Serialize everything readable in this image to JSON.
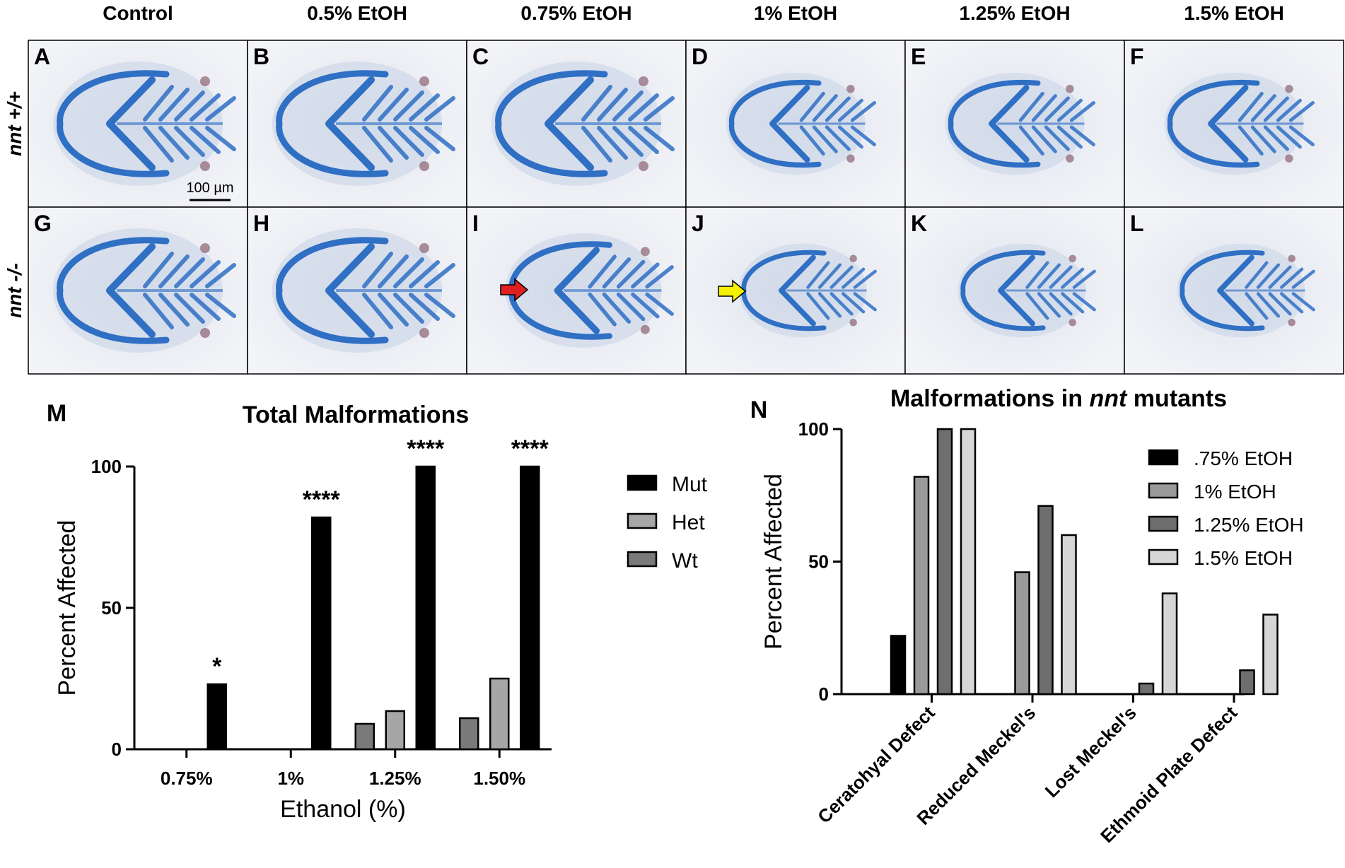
{
  "column_headers": [
    "Control",
    "0.5% EtOH",
    "0.75% EtOH",
    "1% EtOH",
    "1.25% EtOH",
    "1.5% EtOH"
  ],
  "row_labels": [
    {
      "gene": "nnt",
      "genotype": " +/+"
    },
    {
      "gene": "nnt",
      "genotype": " -/-"
    }
  ],
  "panel_letters": [
    [
      "A",
      "B",
      "C",
      "D",
      "E",
      "F"
    ],
    [
      "G",
      "H",
      "I",
      "J",
      "K",
      "L"
    ]
  ],
  "scale_bar_label": "100 µm",
  "arrow_colors": {
    "red": "#e02020",
    "yellow": "#f5f000"
  },
  "colors": {
    "mut": "#000000",
    "het": "#a6a6a6",
    "wt": "#7a7a7a",
    "c075": "#000000",
    "c1": "#9a9a9a",
    "c125": "#6e6e6e",
    "c15": "#d6d6d6",
    "stain": "#2f6fc4"
  },
  "chart_data": [
    {
      "panel_label": "M",
      "type": "bar",
      "title": "Total Malformations",
      "xlabel": "Ethanol (%)",
      "ylabel": "Percent Affected",
      "ylim": [
        0,
        100
      ],
      "yticks": [
        0,
        50,
        100
      ],
      "categories": [
        "0.75%",
        "1%",
        "1.25%",
        "1.50%"
      ],
      "series": [
        {
          "name": "Wt",
          "values": [
            0,
            0,
            9,
            11
          ]
        },
        {
          "name": "Het",
          "values": [
            0,
            0,
            13.5,
            25
          ]
        },
        {
          "name": "Mut",
          "values": [
            23,
            82,
            100,
            100
          ]
        }
      ],
      "legend_order": [
        "Mut",
        "Het",
        "Wt"
      ],
      "legend_position": "right",
      "significance": [
        "*",
        "****",
        "****",
        "****"
      ]
    },
    {
      "panel_label": "N",
      "type": "bar",
      "title_parts": [
        "Malformations in ",
        "nnt",
        " mutants"
      ],
      "xlabel": "",
      "ylabel": "Percent Affected",
      "ylim": [
        0,
        100
      ],
      "yticks": [
        0,
        50,
        100
      ],
      "categories": [
        "Ceratohyal Defect",
        "Reduced Meckel's",
        "Lost Meckel's",
        "Ethmoid Plate Defect"
      ],
      "series": [
        {
          "name": ".75% EtOH",
          "values": [
            22,
            0,
            0,
            0
          ]
        },
        {
          "name": "1% EtOH",
          "values": [
            82,
            46,
            0,
            0
          ]
        },
        {
          "name": "1.25% EtOH",
          "values": [
            100,
            71,
            4,
            9
          ]
        },
        {
          "name": "1.5% EtOH",
          "values": [
            100,
            60,
            38,
            30
          ]
        }
      ],
      "legend_position": "top-right"
    }
  ]
}
